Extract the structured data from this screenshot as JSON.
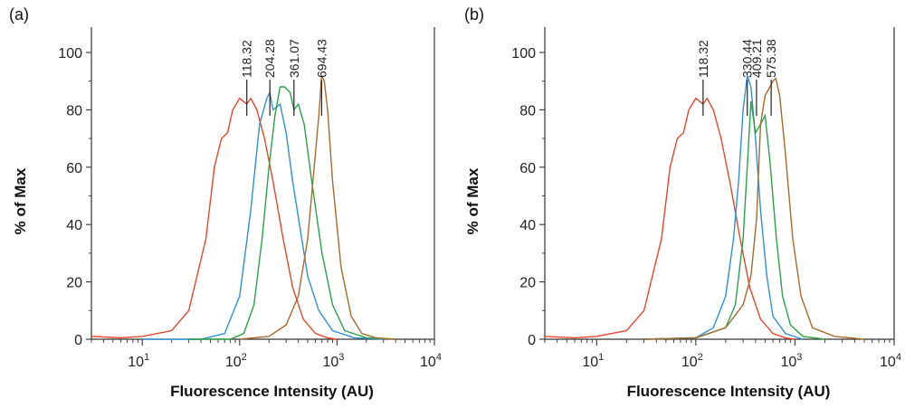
{
  "chart_data": [
    {
      "type": "line",
      "panel_label": "(a)",
      "xlabel": "Fluorescence Intensity (AU)",
      "ylabel": "% of Max",
      "xscale": "log",
      "xlim": [
        3,
        10000
      ],
      "ylim": [
        0,
        100
      ],
      "yticks": [
        "0",
        "20",
        "40",
        "60",
        "80",
        "100"
      ],
      "xticks": [
        {
          "value": 10,
          "base": "10",
          "exp": "1"
        },
        {
          "value": 100,
          "base": "10",
          "exp": "2"
        },
        {
          "value": 1000,
          "base": "10",
          "exp": "3"
        },
        {
          "value": 10000,
          "base": "10",
          "exp": "4"
        }
      ],
      "grid": false,
      "series": [
        {
          "color": "#e8452c",
          "points": [
            [
              3,
              1
            ],
            [
              6,
              0.5
            ],
            [
              10,
              1
            ],
            [
              20,
              3
            ],
            [
              30,
              10
            ],
            [
              45,
              35
            ],
            [
              55,
              60
            ],
            [
              65,
              70
            ],
            [
              75,
              72
            ],
            [
              85,
              80
            ],
            [
              100,
              84
            ],
            [
              118,
              82
            ],
            [
              130,
              84
            ],
            [
              150,
              80
            ],
            [
              180,
              70
            ],
            [
              220,
              55
            ],
            [
              280,
              35
            ],
            [
              350,
              18
            ],
            [
              450,
              7
            ],
            [
              600,
              2
            ],
            [
              800,
              0.5
            ],
            [
              1000,
              0
            ]
          ]
        },
        {
          "color": "#2f8fd8",
          "points": [
            [
              10,
              0
            ],
            [
              40,
              0
            ],
            [
              70,
              2
            ],
            [
              100,
              15
            ],
            [
              130,
              45
            ],
            [
              160,
              75
            ],
            [
              190,
              84
            ],
            [
              204,
              86
            ],
            [
              220,
              80
            ],
            [
              260,
              82
            ],
            [
              300,
              72
            ],
            [
              350,
              55
            ],
            [
              420,
              38
            ],
            [
              500,
              22
            ],
            [
              650,
              10
            ],
            [
              900,
              3
            ],
            [
              1500,
              0.5
            ],
            [
              3000,
              0
            ]
          ]
        },
        {
          "color": "#2aa24a",
          "points": [
            [
              30,
              0
            ],
            [
              80,
              0
            ],
            [
              110,
              2
            ],
            [
              140,
              12
            ],
            [
              170,
              35
            ],
            [
              200,
              60
            ],
            [
              230,
              78
            ],
            [
              260,
              88
            ],
            [
              290,
              88
            ],
            [
              330,
              86
            ],
            [
              361,
              80
            ],
            [
              400,
              82
            ],
            [
              460,
              75
            ],
            [
              550,
              55
            ],
            [
              700,
              30
            ],
            [
              900,
              12
            ],
            [
              1200,
              3
            ],
            [
              2000,
              0.5
            ],
            [
              4000,
              0
            ]
          ]
        },
        {
          "color": "#a96a2c",
          "points": [
            [
              100,
              0
            ],
            [
              200,
              1
            ],
            [
              300,
              5
            ],
            [
              400,
              15
            ],
            [
              500,
              35
            ],
            [
              600,
              65
            ],
            [
              650,
              78
            ],
            [
              694,
              92
            ],
            [
              740,
              90
            ],
            [
              800,
              80
            ],
            [
              900,
              55
            ],
            [
              1100,
              25
            ],
            [
              1400,
              8
            ],
            [
              1800,
              2
            ],
            [
              2500,
              0.5
            ],
            [
              4000,
              0
            ]
          ]
        }
      ],
      "peak_labels": [
        {
          "text": "118.32",
          "x": 118.32
        },
        {
          "text": "204.28",
          "x": 204.28
        },
        {
          "text": "361.07",
          "x": 361.07
        },
        {
          "text": "694.43",
          "x": 694.43
        }
      ]
    },
    {
      "type": "line",
      "panel_label": "(b)",
      "xlabel": "Fluorescence Intensity (AU)",
      "ylabel": "% of Max",
      "xscale": "log",
      "xlim": [
        3,
        10000
      ],
      "ylim": [
        0,
        100
      ],
      "yticks": [
        "0",
        "20",
        "40",
        "60",
        "80",
        "100"
      ],
      "xticks": [
        {
          "value": 10,
          "base": "10",
          "exp": "1"
        },
        {
          "value": 100,
          "base": "10",
          "exp": "2"
        },
        {
          "value": 1000,
          "base": "10",
          "exp": "3"
        },
        {
          "value": 10000,
          "base": "10",
          "exp": "4"
        }
      ],
      "grid": false,
      "series": [
        {
          "color": "#e8452c",
          "points": [
            [
              3,
              1
            ],
            [
              6,
              0.5
            ],
            [
              10,
              1
            ],
            [
              20,
              3
            ],
            [
              30,
              10
            ],
            [
              45,
              35
            ],
            [
              55,
              60
            ],
            [
              65,
              70
            ],
            [
              75,
              72
            ],
            [
              85,
              80
            ],
            [
              100,
              84
            ],
            [
              118,
              82
            ],
            [
              130,
              84
            ],
            [
              150,
              80
            ],
            [
              180,
              70
            ],
            [
              220,
              55
            ],
            [
              280,
              35
            ],
            [
              350,
              18
            ],
            [
              450,
              7
            ],
            [
              600,
              2
            ],
            [
              800,
              0.5
            ],
            [
              1000,
              0
            ]
          ]
        },
        {
          "color": "#2f8fd8",
          "points": [
            [
              30,
              0
            ],
            [
              100,
              0.5
            ],
            [
              150,
              4
            ],
            [
              200,
              15
            ],
            [
              240,
              35
            ],
            [
              270,
              55
            ],
            [
              300,
              80
            ],
            [
              330,
              92
            ],
            [
              360,
              88
            ],
            [
              400,
              70
            ],
            [
              450,
              45
            ],
            [
              520,
              22
            ],
            [
              600,
              8
            ],
            [
              800,
              2
            ],
            [
              1200,
              0
            ]
          ]
        },
        {
          "color": "#2aa24a",
          "points": [
            [
              30,
              0
            ],
            [
              100,
              0.5
            ],
            [
              200,
              4
            ],
            [
              250,
              12
            ],
            [
              300,
              35
            ],
            [
              330,
              60
            ],
            [
              360,
              83
            ],
            [
              400,
              72
            ],
            [
              450,
              75
            ],
            [
              500,
              78
            ],
            [
              560,
              62
            ],
            [
              650,
              35
            ],
            [
              750,
              15
            ],
            [
              900,
              5
            ],
            [
              1200,
              1
            ],
            [
              2000,
              0
            ]
          ]
        },
        {
          "color": "#a96a2c",
          "points": [
            [
              30,
              0
            ],
            [
              100,
              0.5
            ],
            [
              200,
              4
            ],
            [
              300,
              12
            ],
            [
              360,
              22
            ],
            [
              410,
              42
            ],
            [
              450,
              75
            ],
            [
              500,
              85
            ],
            [
              560,
              88
            ],
            [
              600,
              90
            ],
            [
              640,
              91
            ],
            [
              700,
              85
            ],
            [
              800,
              65
            ],
            [
              950,
              35
            ],
            [
              1150,
              15
            ],
            [
              1500,
              4
            ],
            [
              2500,
              1
            ],
            [
              5000,
              0
            ]
          ]
        }
      ],
      "peak_labels": [
        {
          "text": "118.32",
          "x": 118.32
        },
        {
          "text": "330.44",
          "x": 330.44
        },
        {
          "text": "409.21",
          "x": 409.21
        },
        {
          "text": "575.38",
          "x": 575.38
        }
      ]
    }
  ]
}
